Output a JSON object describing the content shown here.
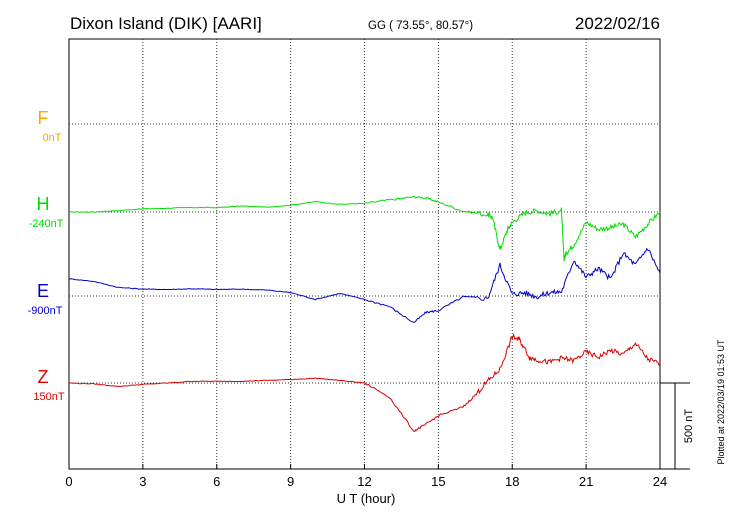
{
  "header": {
    "station": "Dixon Island (DIK)  [AARI]",
    "coords": "GG ( 73.55°,  80.57°)",
    "date": "2022/02/16"
  },
  "plotted_note": "Plotted at 2022/03/19 01:53 UT",
  "colors": {
    "F": "#FFA500",
    "H": "#00DD00",
    "E": "#0000CC",
    "Z": "#DD0000"
  },
  "channels": [
    {
      "key": "F",
      "name": "F",
      "baseline": "0nT"
    },
    {
      "key": "H",
      "name": "H",
      "baseline": "-240nT"
    },
    {
      "key": "E",
      "name": "E",
      "baseline": "-900nT"
    },
    {
      "key": "Z",
      "name": "Z",
      "baseline": "150nT"
    }
  ],
  "chart_data": {
    "type": "line",
    "xlabel": "U T (hour)",
    "xlim": [
      0,
      24
    ],
    "xticks": [
      "0",
      "3",
      "6",
      "9",
      "12",
      "15",
      "18",
      "21",
      "24"
    ],
    "scale_label": "500 nT",
    "grid": true,
    "series": [
      {
        "name": "H",
        "unit": "nT",
        "baseline": -240,
        "x": [
          0,
          1,
          2,
          3,
          4,
          5,
          6,
          7,
          8,
          9,
          10,
          11,
          12,
          13,
          14,
          14.5,
          15,
          16,
          17,
          17.2,
          17.5,
          17.8,
          18,
          18.5,
          19,
          19.5,
          20,
          20.1,
          20.2,
          20.5,
          21,
          21.5,
          22,
          22.5,
          23,
          23.5,
          24
        ],
        "values": [
          -240,
          -240,
          -232,
          -222,
          -218,
          -214,
          -215,
          -205,
          -212,
          -200,
          -180,
          -195,
          -190,
          -170,
          -152,
          -158,
          -182,
          -235,
          -255,
          -270,
          -460,
          -345,
          -300,
          -245,
          -232,
          -250,
          -232,
          -515,
          -475,
          -430,
          -300,
          -340,
          -330,
          -310,
          -385,
          -310,
          -240
        ]
      },
      {
        "name": "E",
        "unit": "nT",
        "baseline": -900,
        "x": [
          0,
          1,
          2,
          3,
          4,
          5,
          6,
          7,
          8,
          9,
          10,
          11,
          12,
          13,
          14,
          14.5,
          15,
          16,
          17,
          17.5,
          18,
          18.5,
          19,
          19.5,
          20,
          20.5,
          21,
          21.5,
          22,
          22.5,
          23,
          23.5,
          24
        ],
        "values": [
          -800,
          -815,
          -850,
          -860,
          -862,
          -858,
          -862,
          -860,
          -865,
          -880,
          -920,
          -885,
          -920,
          -960,
          -1055,
          -995,
          -985,
          -905,
          -915,
          -720,
          -890,
          -880,
          -905,
          -880,
          -875,
          -690,
          -790,
          -740,
          -800,
          -650,
          -720,
          -620,
          -770
        ]
      },
      {
        "name": "Z",
        "unit": "nT",
        "baseline": 150,
        "x": [
          0,
          1,
          2,
          3,
          4,
          5,
          6,
          7,
          8,
          9,
          10,
          11,
          12,
          13,
          14,
          14.5,
          15,
          16,
          16.5,
          17,
          17.5,
          18,
          18.3,
          18.7,
          19,
          19.5,
          20,
          20.5,
          21,
          21.5,
          22,
          22.5,
          23,
          23.5,
          24
        ],
        "values": [
          150,
          145,
          130,
          142,
          150,
          160,
          160,
          160,
          165,
          170,
          178,
          165,
          150,
          70,
          -130,
          -90,
          -40,
          10,
          80,
          160,
          230,
          420,
          400,
          300,
          285,
          270,
          295,
          280,
          330,
          300,
          340,
          315,
          380,
          290,
          260
        ]
      }
    ]
  }
}
